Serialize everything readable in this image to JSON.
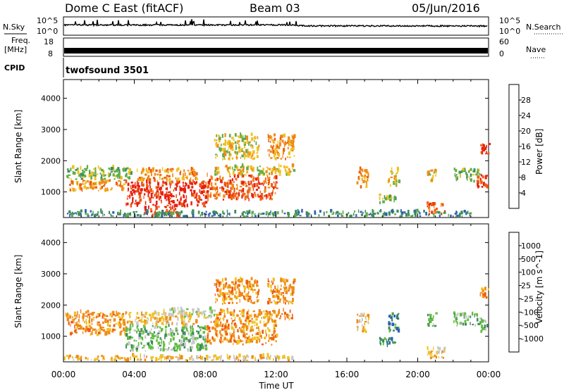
{
  "header": {
    "station": "Dome C East (fitACF)",
    "beam": "Beam 03",
    "date": "05/Jun/2016"
  },
  "noise_panel": {
    "left_label": "N.Sky",
    "right_label": "N.Search",
    "tick_top": "10^5",
    "tick_bottom": "10^0",
    "right_tick_top": "10^5",
    "right_tick_bottom": "10^0"
  },
  "freq_panel": {
    "left_label_1": "Freq.",
    "left_label_2": "[MHz]",
    "tick_top": "18",
    "tick_bottom": "8",
    "right_label": "Nave",
    "right_tick_top": "60",
    "right_tick_bottom": "0"
  },
  "cpid_panel": {
    "left_label": "CPID",
    "program": "twofsound 3501"
  },
  "chart_data": [
    {
      "type": "heatmap",
      "panel": "power",
      "ylabel": "Slant Range [km]",
      "xlabel": "Time UT",
      "x_ticks": [
        "00:00",
        "04:00",
        "08:00",
        "12:00",
        "16:00",
        "20:00",
        "00:00"
      ],
      "y_ticks": [
        1000,
        2000,
        3000,
        4000
      ],
      "ylim": [
        180,
        4600
      ],
      "xlim_hours": [
        0,
        24
      ],
      "colorbar": {
        "label": "Power [dB]",
        "ticks": [
          "4",
          "8",
          "12",
          "16",
          "20",
          "24",
          "28"
        ],
        "colors": [
          "#1e1ee6",
          "#2c5fb4",
          "#3d8a5e",
          "#5fae4a",
          "#f0c020",
          "#f08a18",
          "#f05a10",
          "#e81e10"
        ]
      },
      "regions": [
        {
          "t0": 0.1,
          "t1": 3.8,
          "r0": 1350,
          "r1": 1750,
          "level": 3
        },
        {
          "t0": 0.3,
          "t1": 3.5,
          "r0": 1000,
          "r1": 1350,
          "level": 5
        },
        {
          "t0": 3.5,
          "t1": 8.0,
          "r0": 500,
          "r1": 1300,
          "level": 7
        },
        {
          "t0": 4.0,
          "t1": 7.5,
          "r0": 1300,
          "r1": 1700,
          "level": 5
        },
        {
          "t0": 8.0,
          "t1": 12.0,
          "r0": 700,
          "r1": 1500,
          "level": 6
        },
        {
          "t0": 8.5,
          "t1": 13.0,
          "r0": 1500,
          "r1": 1800,
          "level": 4
        },
        {
          "t0": 4.5,
          "t1": 6.5,
          "r0": 180,
          "r1": 500,
          "level": 7
        },
        {
          "t0": 0.0,
          "t1": 13.0,
          "r0": 180,
          "r1": 350,
          "level": 2
        },
        {
          "t0": 16.5,
          "t1": 17.2,
          "r0": 1100,
          "r1": 1700,
          "level": 5
        },
        {
          "t0": 17.8,
          "t1": 18.7,
          "r0": 600,
          "r1": 900,
          "level": 3
        },
        {
          "t0": 18.3,
          "t1": 18.9,
          "r0": 1100,
          "r1": 1700,
          "level": 4
        },
        {
          "t0": 20.5,
          "t1": 21.0,
          "r0": 1300,
          "r1": 1700,
          "level": 4
        },
        {
          "t0": 22.0,
          "t1": 23.5,
          "r0": 1300,
          "r1": 1700,
          "level": 3
        },
        {
          "t0": 23.3,
          "t1": 23.9,
          "r0": 1100,
          "r1": 1500,
          "level": 7
        },
        {
          "t0": 23.5,
          "t1": 24.0,
          "r0": 2200,
          "r1": 2500,
          "level": 7
        },
        {
          "t0": 20.5,
          "t1": 21.5,
          "r0": 250,
          "r1": 600,
          "level": 6
        },
        {
          "t0": 13.0,
          "t1": 23.0,
          "r0": 180,
          "r1": 350,
          "level": 2
        },
        {
          "t0": 11.5,
          "t1": 13.0,
          "r0": 2000,
          "r1": 2800,
          "level": 5
        },
        {
          "t0": 8.5,
          "t1": 11.0,
          "r0": 2000,
          "r1": 2800,
          "level": 4
        }
      ]
    },
    {
      "type": "heatmap",
      "panel": "velocity",
      "ylabel": "Slant Range [km]",
      "xlabel": "Time UT",
      "x_ticks": [
        "00:00",
        "04:00",
        "08:00",
        "12:00",
        "16:00",
        "20:00",
        "00:00"
      ],
      "y_ticks": [
        1000,
        2000,
        3000,
        4000
      ],
      "ylim": [
        180,
        4600
      ],
      "xlim_hours": [
        0,
        24
      ],
      "colorbar": {
        "label": "Velocity [m s^-1]",
        "ticks": [
          "1000",
          "500",
          "100",
          "25",
          "-25",
          "-100",
          "-500",
          "-1000"
        ],
        "colors": [
          "#1e3cc8",
          "#2c5fb4",
          "#3d8a5e",
          "#5fbe3a",
          "#c8c8c8",
          "#f0c020",
          "#f08a18",
          "#f05a10",
          "#e81e10"
        ]
      },
      "regions": [
        {
          "t0": 0.1,
          "t1": 3.8,
          "r0": 1350,
          "r1": 1750,
          "level": 6
        },
        {
          "t0": 0.3,
          "t1": 3.5,
          "r0": 1000,
          "r1": 1350,
          "level": 6
        },
        {
          "t0": 3.5,
          "t1": 8.0,
          "r0": 500,
          "r1": 1300,
          "level": 3
        },
        {
          "t0": 4.0,
          "t1": 7.5,
          "r0": 1300,
          "r1": 1700,
          "level": 5
        },
        {
          "t0": 5.5,
          "t1": 8.5,
          "r0": 1550,
          "r1": 1850,
          "level": 4
        },
        {
          "t0": 8.0,
          "t1": 12.0,
          "r0": 700,
          "r1": 1500,
          "level": 6
        },
        {
          "t0": 8.5,
          "t1": 13.0,
          "r0": 1500,
          "r1": 1800,
          "level": 6
        },
        {
          "t0": 0.0,
          "t1": 13.0,
          "r0": 180,
          "r1": 350,
          "level": 5
        },
        {
          "t0": 16.5,
          "t1": 17.2,
          "r0": 1100,
          "r1": 1700,
          "level": 5
        },
        {
          "t0": 17.8,
          "t1": 18.7,
          "r0": 600,
          "r1": 900,
          "level": 2
        },
        {
          "t0": 18.3,
          "t1": 18.9,
          "r0": 1100,
          "r1": 1700,
          "level": 2
        },
        {
          "t0": 20.5,
          "t1": 21.0,
          "r0": 1300,
          "r1": 1700,
          "level": 3
        },
        {
          "t0": 22.0,
          "t1": 23.5,
          "r0": 1300,
          "r1": 1700,
          "level": 3
        },
        {
          "t0": 23.3,
          "t1": 23.9,
          "r0": 1100,
          "r1": 1500,
          "level": 3
        },
        {
          "t0": 23.5,
          "t1": 24.0,
          "r0": 2200,
          "r1": 2500,
          "level": 6
        },
        {
          "t0": 20.5,
          "t1": 21.5,
          "r0": 250,
          "r1": 600,
          "level": 5
        },
        {
          "t0": 11.5,
          "t1": 13.0,
          "r0": 2000,
          "r1": 2800,
          "level": 6
        },
        {
          "t0": 8.5,
          "t1": 11.0,
          "r0": 2000,
          "r1": 2800,
          "level": 6
        }
      ]
    }
  ],
  "x_axis_title": "Time UT"
}
